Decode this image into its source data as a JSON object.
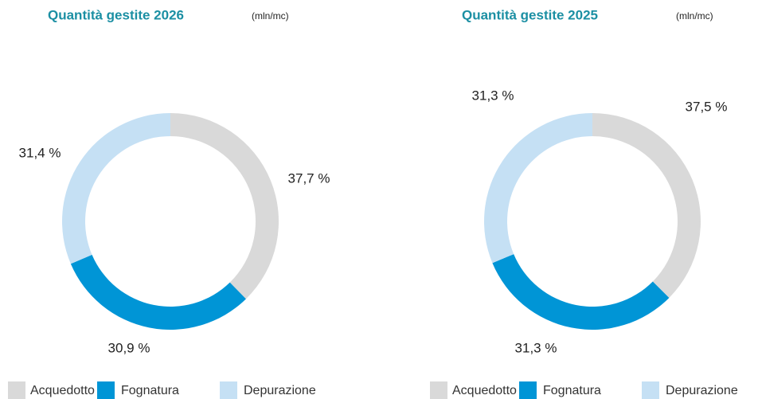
{
  "chart_data": [
    {
      "type": "pie",
      "title": "Quantità gestite 2026",
      "subtitle": "(mln/mc)",
      "categories": [
        "Acquedotto",
        "Fognatura",
        "Depurazione"
      ],
      "values": [
        37.7,
        30.9,
        31.4
      ],
      "value_labels": [
        "37,7 %",
        "30,9 %",
        "31,4 %"
      ],
      "colors": [
        "#d9d9d9",
        "#0095d6",
        "#c5e0f4"
      ],
      "donut": true
    },
    {
      "type": "pie",
      "title": "Quantità gestite 2025",
      "subtitle": "(mln/mc)",
      "categories": [
        "Acquedotto",
        "Fognatura",
        "Depurazione"
      ],
      "values": [
        37.5,
        31.3,
        31.3
      ],
      "value_labels": [
        "37,5 %",
        "31,3 %",
        "31,3 %"
      ],
      "colors": [
        "#d9d9d9",
        "#0095d6",
        "#c5e0f4"
      ],
      "donut": true
    }
  ]
}
